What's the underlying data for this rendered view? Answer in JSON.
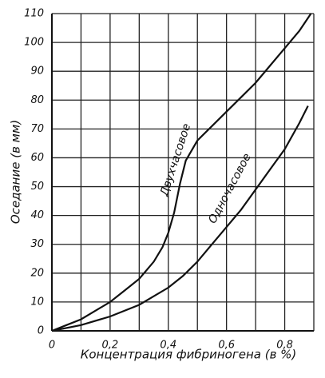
{
  "chart_data": {
    "type": "line",
    "x_label": "Концентрация фибриногена (в %)",
    "y_label": "Оседание (в мм)",
    "xlim": [
      0,
      0.9
    ],
    "ylim": [
      0,
      110
    ],
    "xticks": [
      0,
      {
        "value": 0.2,
        "label": "0,2"
      },
      {
        "value": 0.4,
        "label": "0,4"
      },
      {
        "value": 0.6,
        "label": "0,6"
      },
      {
        "value": 0.8,
        "label": "0,8"
      }
    ],
    "xminor": [
      0.1,
      0.3,
      0.5,
      0.7,
      0.9
    ],
    "yticks": [
      0,
      10,
      20,
      30,
      40,
      50,
      60,
      70,
      80,
      90,
      100,
      110
    ],
    "grid": true,
    "series": [
      {
        "name": "Двухчасовое",
        "color": "#111111",
        "x": [
          0,
          0.05,
          0.1,
          0.15,
          0.2,
          0.25,
          0.3,
          0.35,
          0.38,
          0.4,
          0.42,
          0.44,
          0.46,
          0.5,
          0.55,
          0.6,
          0.65,
          0.7,
          0.75,
          0.8,
          0.85,
          0.89
        ],
        "values": [
          0,
          2,
          4,
          7,
          10,
          14,
          18,
          24,
          29,
          34,
          41,
          51,
          59,
          66,
          71,
          76,
          81,
          86,
          92,
          98,
          104,
          110
        ]
      },
      {
        "name": "Одночасовое",
        "color": "#111111",
        "x": [
          0,
          0.1,
          0.2,
          0.3,
          0.4,
          0.45,
          0.5,
          0.55,
          0.6,
          0.65,
          0.7,
          0.75,
          0.8,
          0.85,
          0.88
        ],
        "values": [
          0,
          2,
          5,
          9,
          15,
          19,
          24,
          30,
          36,
          42,
          49,
          56,
          63,
          72,
          78
        ]
      }
    ]
  }
}
